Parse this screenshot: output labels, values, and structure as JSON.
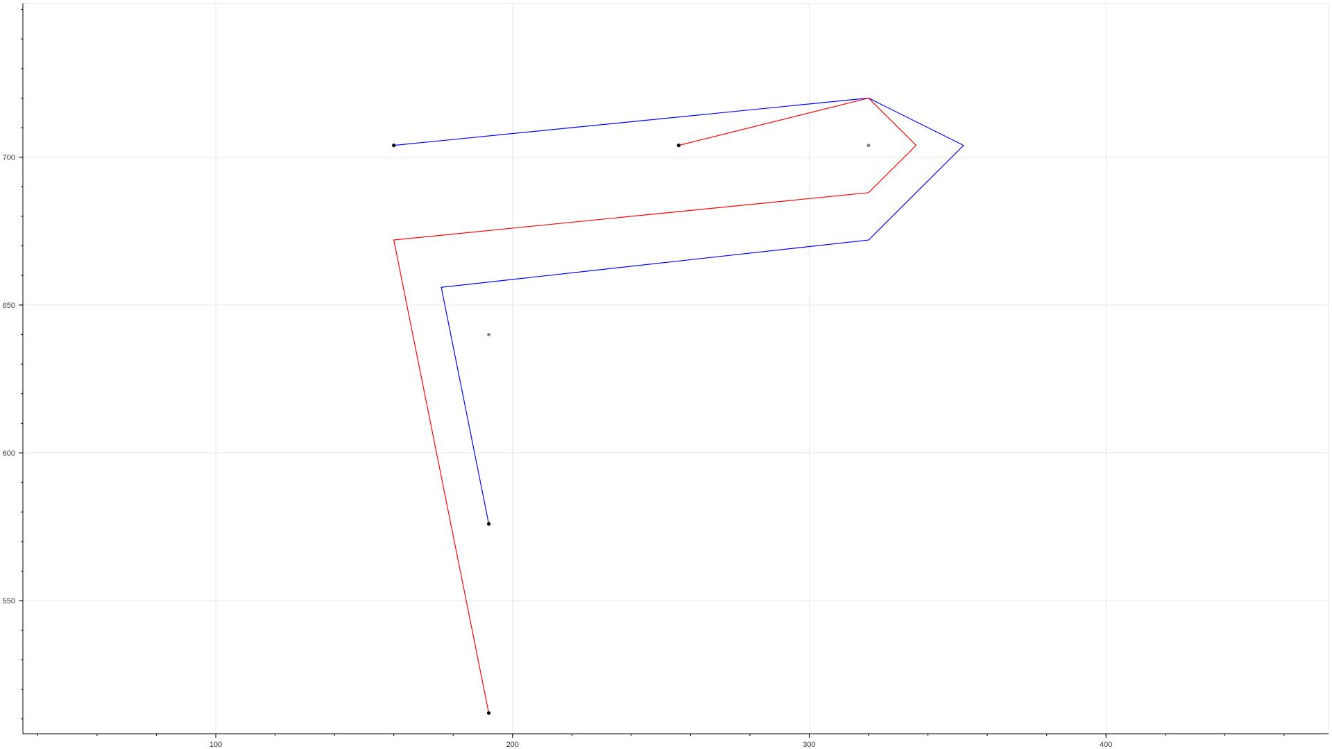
{
  "chart_data": {
    "type": "line",
    "title": "",
    "xlabel": "",
    "ylabel": "",
    "xlim": [
      35,
      475
    ],
    "ylim": [
      505,
      752
    ],
    "grid": true,
    "x_ticks": [
      100,
      200,
      300,
      400
    ],
    "y_ticks": [
      550,
      600,
      650,
      700
    ],
    "x_tick_labels": [
      "100",
      "200",
      "300",
      "400"
    ],
    "y_tick_labels": [
      "550",
      "600",
      "650",
      "700"
    ],
    "x_minor_step": 20,
    "y_minor_step": 10,
    "series": [
      {
        "color": "#0000ff",
        "x": [
          160,
          320,
          352,
          320,
          176,
          192
        ],
        "y": [
          704,
          720,
          704,
          672,
          656,
          576
        ]
      },
      {
        "color": "#ff0000",
        "x": [
          256,
          320,
          336,
          320,
          160,
          192
        ],
        "y": [
          704,
          720,
          704,
          688,
          672,
          512
        ]
      }
    ],
    "endpoints": {
      "color": "#000000",
      "points": [
        {
          "x": 160,
          "y": 704
        },
        {
          "x": 256,
          "y": 704
        },
        {
          "x": 192,
          "y": 576
        },
        {
          "x": 192,
          "y": 512
        }
      ]
    },
    "centers": {
      "color": "#808080",
      "points": [
        {
          "x": 320,
          "y": 704
        },
        {
          "x": 192,
          "y": 640
        }
      ]
    }
  }
}
